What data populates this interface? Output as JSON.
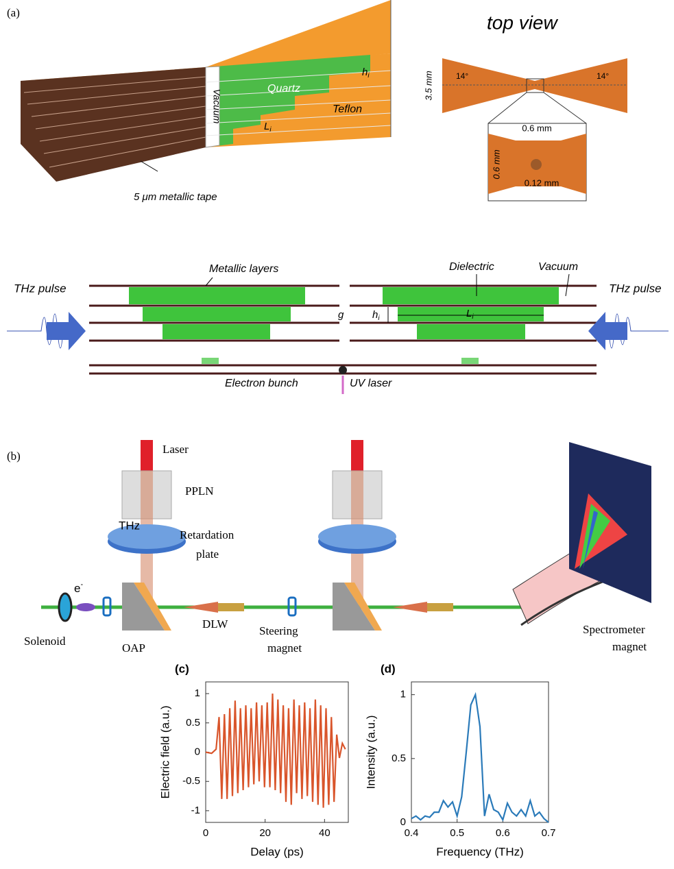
{
  "panel_a": {
    "label": "(a)",
    "perspective": {
      "vacuum": "Vacuum",
      "quartz": "Quartz",
      "teflon": "Teflon",
      "h": {
        "base": "h",
        "sub": "i"
      },
      "L": {
        "base": "L",
        "sub": "i"
      },
      "tape": "5 μm metallic tape"
    },
    "top_view": {
      "title": "top view",
      "height": "3.5 mm",
      "angle_left": "14°",
      "angle_right": "14°",
      "width_zoom": "0.6 mm",
      "height_zoom": "0.6 mm",
      "hole": "0.12 mm"
    },
    "schematic": {
      "thz_left": "THz pulse",
      "thz_right": "THz pulse",
      "metallic": "Metallic layers",
      "dielectric": "Dielectric",
      "vacuum": "Vacuum",
      "gap": "g",
      "h": {
        "base": "h",
        "sub": "i"
      },
      "L": {
        "base": "L",
        "sub": "i"
      },
      "bunch": "Electron bunch",
      "uv": "UV laser"
    }
  },
  "panel_b": {
    "label": "(b)",
    "laser": "Laser",
    "ppln": "PPLN",
    "thz": "THz",
    "retardation": [
      "Retardation",
      "plate"
    ],
    "electron": {
      "base": "e",
      "sup": "-"
    },
    "solenoid": "Solenoid",
    "oap": "OAP",
    "dlw": "DLW",
    "steering": [
      "Steering",
      "magnet"
    ],
    "spectrometer": [
      "Spectrometer",
      "magnet"
    ]
  },
  "chart_data": [
    {
      "type": "line",
      "title": "(c)",
      "x_label": "Delay (ps)",
      "y_label": "Electric field (a.u.)",
      "color": "#d9552b",
      "x": [
        0,
        2,
        3.5,
        4.5,
        5.4,
        6.3,
        7.2,
        8.1,
        9.0,
        9.9,
        10.8,
        11.7,
        12.6,
        13.5,
        14.4,
        15.3,
        16.2,
        17.1,
        18.0,
        18.9,
        19.8,
        20.7,
        21.6,
        22.5,
        23.4,
        24.3,
        25.2,
        26.1,
        27.0,
        27.9,
        28.8,
        29.7,
        30.6,
        31.5,
        32.4,
        33.3,
        34.2,
        35.1,
        36.0,
        36.9,
        37.8,
        38.7,
        39.6,
        40.5,
        41.4,
        42.3,
        43.2,
        44.1,
        45,
        46,
        47
      ],
      "values": [
        0,
        -0.02,
        0.05,
        0.6,
        -0.8,
        0.65,
        -0.8,
        0.75,
        -0.75,
        0.88,
        -0.7,
        0.75,
        -0.65,
        0.8,
        -0.6,
        0.75,
        -0.55,
        0.85,
        -0.5,
        0.8,
        -0.6,
        0.85,
        -0.6,
        1.0,
        -0.65,
        0.9,
        -0.7,
        0.8,
        -0.85,
        0.75,
        -0.9,
        0.9,
        -0.7,
        0.8,
        -0.8,
        0.85,
        -0.75,
        0.75,
        -0.85,
        0.9,
        -0.9,
        0.8,
        -0.95,
        0.75,
        -0.9,
        0.6,
        -0.85,
        0.3,
        -0.1,
        0.15,
        0.05
      ],
      "xlim": [
        0,
        48
      ],
      "ylim": [
        -1.2,
        1.2
      ],
      "xticks": [
        0,
        20,
        40
      ],
      "yticks": [
        -1,
        -0.5,
        0,
        0.5,
        1
      ]
    },
    {
      "type": "line",
      "title": "(d)",
      "x_label": "Frequency (THz)",
      "y_label": "Intensity (a.u.)",
      "color": "#2a7ab9",
      "x": [
        0.4,
        0.41,
        0.42,
        0.43,
        0.44,
        0.45,
        0.46,
        0.47,
        0.48,
        0.49,
        0.5,
        0.51,
        0.52,
        0.53,
        0.54,
        0.55,
        0.56,
        0.57,
        0.58,
        0.59,
        0.6,
        0.61,
        0.62,
        0.63,
        0.64,
        0.65,
        0.66,
        0.67,
        0.68,
        0.69,
        0.7
      ],
      "values": [
        0.03,
        0.05,
        0.02,
        0.05,
        0.04,
        0.08,
        0.08,
        0.17,
        0.12,
        0.16,
        0.05,
        0.2,
        0.55,
        0.92,
        1.0,
        0.75,
        0.05,
        0.22,
        0.1,
        0.08,
        0.02,
        0.15,
        0.08,
        0.05,
        0.1,
        0.05,
        0.17,
        0.05,
        0.08,
        0.03,
        0.0
      ],
      "xlim": [
        0.4,
        0.7
      ],
      "ylim": [
        0,
        1.1
      ],
      "xticks": [
        0.4,
        0.5,
        0.6,
        0.7
      ],
      "yticks": [
        0,
        0.5,
        1
      ]
    }
  ]
}
